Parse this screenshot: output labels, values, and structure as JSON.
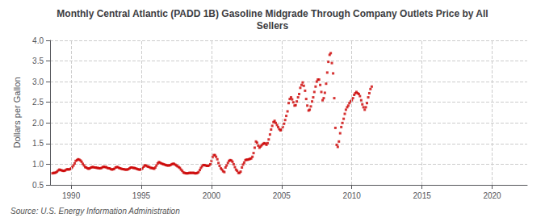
{
  "chart_data": {
    "type": "scatter",
    "title": "Monthly Central Atlantic (PADD 1B) Gasoline Midgrade Through Company Outlets Price by All\nSellers",
    "ylabel": "Dollars per Gallon",
    "annotations": [
      "Source: U.S. Energy Information Administration"
    ],
    "color": "#cc0000",
    "marker": "square",
    "grid": true,
    "xlim": [
      1988.5,
      2022.5
    ],
    "ylim": [
      0.5,
      4.0
    ],
    "xticks": [
      1990,
      1995,
      2000,
      2005,
      2010,
      2015,
      2020
    ],
    "yticks": [
      0.5,
      {
        "value": 1.0,
        "label": "1.0"
      },
      1.5,
      {
        "value": 2.0,
        "label": "2.0"
      },
      2.5,
      {
        "value": 3.0,
        "label": "3.0"
      },
      3.5,
      {
        "value": 4.0,
        "label": "4.0"
      }
    ],
    "x": [
      1988.67,
      1988.75,
      1988.83,
      1988.92,
      1989.0,
      1989.08,
      1989.17,
      1989.25,
      1989.33,
      1989.42,
      1989.5,
      1989.58,
      1989.67,
      1989.75,
      1989.83,
      1989.92,
      1990.0,
      1990.08,
      1990.17,
      1990.25,
      1990.33,
      1990.42,
      1990.5,
      1990.58,
      1990.67,
      1990.75,
      1990.83,
      1990.92,
      1991.0,
      1991.08,
      1991.17,
      1991.25,
      1991.33,
      1991.42,
      1991.5,
      1991.58,
      1991.67,
      1991.75,
      1991.83,
      1991.92,
      1992.0,
      1992.08,
      1992.17,
      1992.25,
      1992.33,
      1992.42,
      1992.5,
      1992.58,
      1992.67,
      1992.75,
      1992.83,
      1992.92,
      1993.0,
      1993.08,
      1993.17,
      1993.25,
      1993.33,
      1993.42,
      1993.5,
      1993.58,
      1993.67,
      1993.75,
      1993.83,
      1993.92,
      1994.0,
      1994.08,
      1994.17,
      1994.25,
      1994.33,
      1994.42,
      1994.5,
      1994.58,
      1994.67,
      1994.75,
      1994.83,
      1994.92,
      1995.0,
      1995.08,
      1995.17,
      1995.25,
      1995.33,
      1995.42,
      1995.5,
      1995.58,
      1995.67,
      1995.75,
      1995.83,
      1995.92,
      1996.0,
      1996.08,
      1996.17,
      1996.25,
      1996.33,
      1996.42,
      1996.5,
      1996.58,
      1996.67,
      1996.75,
      1996.83,
      1996.92,
      1997.0,
      1997.08,
      1997.17,
      1997.25,
      1997.33,
      1997.42,
      1997.5,
      1997.58,
      1997.67,
      1997.75,
      1997.83,
      1997.92,
      1998.0,
      1998.08,
      1998.17,
      1998.25,
      1998.33,
      1998.42,
      1998.5,
      1998.58,
      1998.67,
      1998.75,
      1998.83,
      1998.92,
      1999.0,
      1999.08,
      1999.17,
      1999.25,
      1999.33,
      1999.42,
      1999.5,
      1999.58,
      1999.67,
      1999.75,
      1999.83,
      1999.92,
      2000.0,
      2000.08,
      2000.17,
      2000.25,
      2000.33,
      2000.42,
      2000.5,
      2000.58,
      2000.67,
      2000.75,
      2000.83,
      2000.92,
      2001.0,
      2001.08,
      2001.17,
      2001.25,
      2001.33,
      2001.42,
      2001.5,
      2001.58,
      2001.67,
      2001.75,
      2001.83,
      2001.92,
      2002.0,
      2002.08,
      2002.17,
      2002.25,
      2002.33,
      2002.42,
      2002.5,
      2002.58,
      2002.67,
      2002.75,
      2002.83,
      2002.92,
      2003.0,
      2003.08,
      2003.17,
      2003.25,
      2003.33,
      2003.42,
      2003.5,
      2003.58,
      2003.67,
      2003.75,
      2003.83,
      2003.92,
      2004.0,
      2004.08,
      2004.17,
      2004.25,
      2004.33,
      2004.42,
      2004.5,
      2004.58,
      2004.67,
      2004.75,
      2004.83,
      2004.92,
      2005.0,
      2005.08,
      2005.17,
      2005.25,
      2005.33,
      2005.42,
      2005.5,
      2005.58,
      2005.67,
      2005.75,
      2005.83,
      2005.92,
      2006.0,
      2006.08,
      2006.17,
      2006.25,
      2006.33,
      2006.42,
      2006.5,
      2006.58,
      2006.67,
      2006.75,
      2006.83,
      2006.92,
      2007.0,
      2007.08,
      2007.17,
      2007.25,
      2007.33,
      2007.42,
      2007.5,
      2007.58,
      2007.67,
      2007.75,
      2007.83,
      2007.92,
      2008.0,
      2008.08,
      2008.17,
      2008.25,
      2008.33,
      2008.42,
      2008.5,
      2008.58,
      2008.67,
      2008.75,
      2008.83,
      2008.92,
      2009.0,
      2009.08,
      2009.17,
      2009.25,
      2009.33,
      2009.42,
      2009.5,
      2009.58,
      2009.67,
      2009.75,
      2009.83,
      2009.92,
      2010.0,
      2010.08,
      2010.17,
      2010.25,
      2010.33,
      2010.42,
      2010.5,
      2010.58,
      2010.67,
      2010.75,
      2010.83,
      2010.92,
      2011.0,
      2011.08,
      2011.17,
      2011.25,
      2011.33,
      2011.42
    ],
    "values": [
      0.78,
      0.79,
      0.79,
      0.8,
      0.82,
      0.85,
      0.87,
      0.86,
      0.85,
      0.84,
      0.84,
      0.85,
      0.87,
      0.88,
      0.87,
      0.88,
      0.9,
      0.93,
      0.97,
      1.02,
      1.08,
      1.1,
      1.12,
      1.11,
      1.09,
      1.06,
      1.01,
      0.97,
      0.93,
      0.92,
      0.9,
      0.89,
      0.9,
      0.92,
      0.93,
      0.93,
      0.92,
      0.92,
      0.91,
      0.91,
      0.9,
      0.9,
      0.91,
      0.93,
      0.94,
      0.93,
      0.93,
      0.91,
      0.9,
      0.9,
      0.88,
      0.87,
      0.88,
      0.89,
      0.92,
      0.93,
      0.93,
      0.91,
      0.9,
      0.89,
      0.88,
      0.88,
      0.87,
      0.87,
      0.87,
      0.88,
      0.9,
      0.92,
      0.92,
      0.91,
      0.91,
      0.9,
      0.89,
      0.88,
      0.87,
      0.87,
      0.88,
      0.9,
      0.94,
      0.97,
      0.97,
      0.95,
      0.94,
      0.93,
      0.91,
      0.91,
      0.9,
      0.89,
      0.92,
      0.97,
      1.02,
      1.05,
      1.04,
      1.02,
      1.01,
      1.0,
      0.99,
      0.98,
      0.97,
      0.97,
      0.97,
      0.98,
      1.0,
      1.01,
      1.01,
      0.99,
      0.97,
      0.95,
      0.93,
      0.91,
      0.87,
      0.84,
      0.8,
      0.79,
      0.78,
      0.78,
      0.78,
      0.79,
      0.79,
      0.79,
      0.79,
      0.79,
      0.78,
      0.78,
      0.79,
      0.81,
      0.86,
      0.91,
      0.95,
      0.98,
      0.98,
      0.97,
      0.96,
      0.96,
      0.97,
      1.0,
      1.08,
      1.17,
      1.22,
      1.22,
      1.18,
      1.12,
      1.03,
      0.96,
      0.9,
      0.87,
      0.83,
      0.81,
      0.92,
      0.97,
      1.03,
      1.08,
      1.1,
      1.09,
      1.06,
      1.0,
      0.93,
      0.87,
      0.84,
      0.79,
      0.79,
      0.82,
      0.92,
      0.99,
      1.04,
      1.1,
      1.11,
      1.11,
      1.12,
      1.13,
      1.14,
      1.18,
      1.27,
      1.4,
      1.55,
      1.52,
      1.45,
      1.4,
      1.43,
      1.46,
      1.49,
      1.51,
      1.5,
      1.47,
      1.51,
      1.6,
      1.72,
      1.84,
      1.93,
      2.02,
      2.05,
      2.0,
      1.95,
      1.9,
      1.85,
      1.82,
      1.84,
      1.9,
      1.98,
      2.07,
      2.17,
      2.28,
      2.48,
      2.58,
      2.62,
      2.57,
      2.5,
      2.42,
      2.43,
      2.52,
      2.62,
      2.7,
      2.85,
      2.92,
      2.98,
      2.9,
      2.78,
      2.58,
      2.42,
      2.3,
      2.32,
      2.4,
      2.52,
      2.62,
      2.75,
      2.88,
      3.0,
      3.05,
      3.05,
      2.92,
      2.75,
      2.55,
      2.6,
      2.73,
      2.95,
      3.22,
      3.48,
      3.65,
      3.69,
      3.45,
      3.2,
      2.6,
      1.88,
      1.47,
      1.42,
      1.55,
      1.75,
      1.9,
      2.0,
      2.1,
      2.22,
      2.32,
      2.38,
      2.42,
      2.48,
      2.52,
      2.55,
      2.6,
      2.68,
      2.72,
      2.75,
      2.72,
      2.7,
      2.65,
      2.55,
      2.45,
      2.38,
      2.32,
      2.38,
      2.48,
      2.62,
      2.72,
      2.82,
      2.88
    ]
  }
}
